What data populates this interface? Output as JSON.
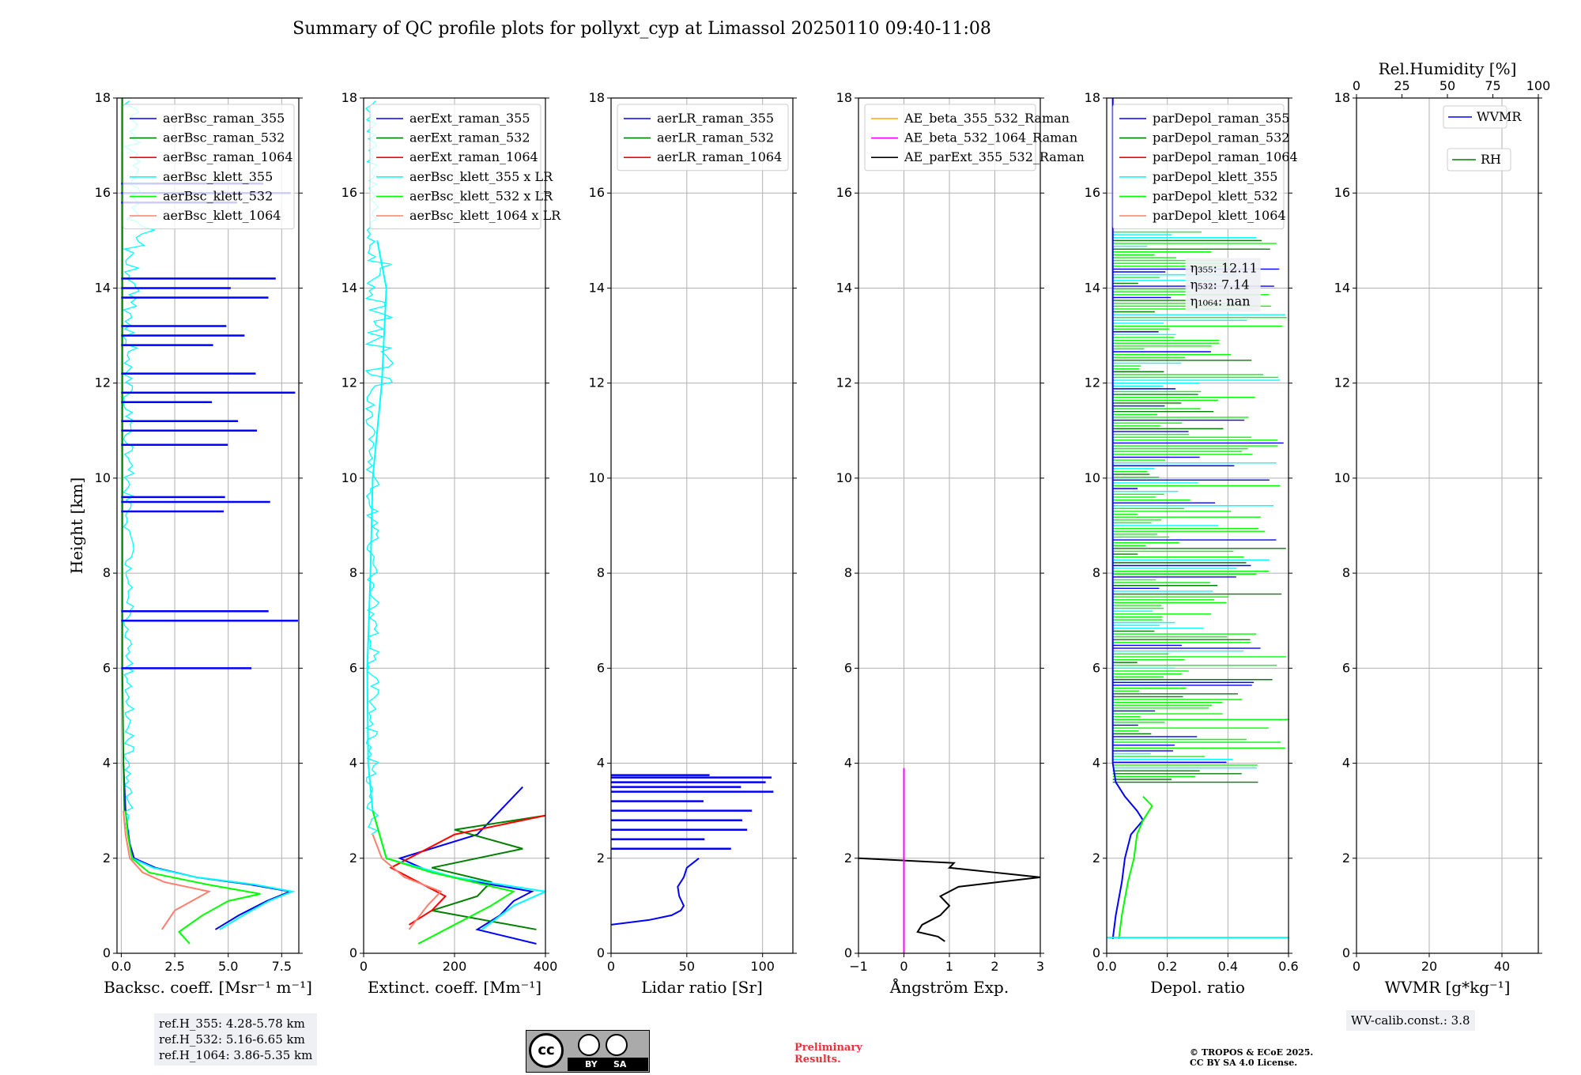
{
  "title": "Summary of QC profile plots for pollyxt_cyp at Limassol 20250110 09:40-11:08",
  "info": {
    "ref_h": [
      "ref.H_355: 4.28-5.78 km",
      "ref.H_532: 5.16-6.65 km",
      "ref.H_1064: 3.86-5.35 km"
    ],
    "wv_calib": "WV-calib.const.: 3.8",
    "prelim_line1": "Preliminary",
    "prelim_line2": "Results.",
    "copyright_line1": "© TROPOS & ECoE 2025.",
    "copyright_line2": "CC BY SA 4.0 License.",
    "license_badge": [
      "BY",
      "SA"
    ]
  },
  "colors": {
    "c355": "#0000ff",
    "c532": "#008000",
    "c1064": "#ff0000",
    "k355": "#00ffff",
    "k532": "#00ff00",
    "k1064": "#ff7f6e",
    "orange": "#ffa500",
    "magenta": "#ff00ff",
    "black": "#000000",
    "grid": "#b0b0b0"
  },
  "chart_data": [
    {
      "type": "line",
      "xlabel": "Backsc. coeff. [Msr⁻¹ m⁻¹]",
      "ylabel": "Height [km]",
      "xlim": [
        -0.2,
        8.3
      ],
      "ylim": [
        0,
        18
      ],
      "xticks": [
        0,
        2.5,
        5,
        7.5
      ],
      "xticklabels": [
        "0.0",
        "2.5",
        "5.0",
        "7.5"
      ],
      "yticks": [
        0,
        2,
        4,
        6,
        8,
        10,
        12,
        14,
        16,
        18
      ],
      "legend": [
        "aerBsc_raman_355",
        "aerBsc_raman_532",
        "aerBsc_raman_1064",
        "aerBsc_klett_355",
        "aerBsc_klett_532",
        "aerBsc_klett_1064"
      ],
      "series": [
        {
          "name": "aerBsc_raman_355",
          "color": "c355",
          "y": [
            0.5,
            0.8,
            1.1,
            1.3,
            1.45,
            1.6,
            1.8,
            2.0,
            2.3,
            2.6,
            3.0,
            3.5,
            4.0
          ],
          "x": [
            4.4,
            5.5,
            6.8,
            7.9,
            6.0,
            3.5,
            1.6,
            0.6,
            0.4,
            0.3,
            0.2,
            0.15,
            0.1
          ]
        },
        {
          "name": "aerBsc_klett_355",
          "color": "k355",
          "y": [
            0.5,
            0.8,
            1.1,
            1.3,
            1.45,
            1.6,
            1.8,
            2.0
          ],
          "x": [
            4.6,
            5.7,
            6.9,
            8.0,
            6.2,
            3.5,
            1.5,
            0.5
          ]
        },
        {
          "name": "aerBsc_klett_532",
          "color": "k532",
          "y": [
            0.2,
            0.45,
            0.8,
            1.1,
            1.25,
            1.45,
            1.7,
            2.0,
            2.5,
            3.0
          ],
          "x": [
            3.2,
            2.7,
            3.8,
            5.0,
            6.5,
            4.0,
            1.3,
            0.5,
            0.3,
            0.2
          ]
        },
        {
          "name": "aerBsc_klett_1064",
          "color": "k1064",
          "y": [
            0.5,
            0.9,
            1.15,
            1.3,
            1.5,
            1.7,
            2.0,
            2.5,
            3.0
          ],
          "x": [
            1.9,
            2.5,
            3.5,
            4.1,
            2.0,
            1.0,
            0.4,
            0.2,
            0.1
          ]
        },
        {
          "name": "aerBsc_raman_532",
          "color": "c532",
          "y": [
            3.0,
            4.0,
            6.0,
            8.0,
            10.0,
            12.0,
            14.0,
            18.0
          ],
          "x": [
            0.15,
            0.1,
            0.05,
            0.05,
            0.05,
            0.05,
            0.05,
            0.05
          ]
        }
      ],
      "spikes_355_km": [
        6.0,
        7.0,
        7.2,
        9.3,
        9.5,
        9.6,
        10.7,
        11.0,
        11.2,
        11.6,
        11.8,
        12.2,
        12.8,
        13.0,
        13.2,
        13.8,
        14.0,
        14.2,
        15.8,
        16.0,
        16.2
      ]
    },
    {
      "type": "line",
      "xlabel": "Extinct. coeff. [Mm⁻¹]",
      "xlim": [
        0,
        400
      ],
      "ylim": [
        0,
        18
      ],
      "xticks": [
        0,
        200,
        400
      ],
      "xticklabels": [
        "0",
        "200",
        "400"
      ],
      "yticks": [
        0,
        2,
        4,
        6,
        8,
        10,
        12,
        14,
        16,
        18
      ],
      "legend": [
        "aerExt_raman_355",
        "aerExt_raman_532",
        "aerExt_raman_1064",
        "aerBsc_klett_355 x LR",
        "aerBsc_klett_532 x LR",
        "aerBsc_klett_1064 x LR"
      ],
      "series": [
        {
          "name": "aerExt_raman_355",
          "color": "c355",
          "y": [
            0.2,
            0.5,
            0.8,
            1.1,
            1.3,
            1.5,
            1.7,
            2.0,
            2.5,
            3.0,
            3.5
          ],
          "x": [
            380,
            250,
            300,
            330,
            370,
            250,
            150,
            80,
            250,
            300,
            350
          ]
        },
        {
          "name": "aerExt_raman_532",
          "color": "c532",
          "y": [
            0.5,
            0.9,
            1.2,
            1.5,
            1.8,
            2.2,
            2.6,
            2.9
          ],
          "x": [
            380,
            150,
            250,
            280,
            150,
            350,
            200,
            400
          ]
        },
        {
          "name": "aerExt_raman_1064",
          "color": "c1064",
          "y": [
            0.6,
            0.9,
            1.2,
            1.5,
            1.8,
            2.0,
            2.5,
            2.9
          ],
          "x": [
            100,
            150,
            180,
            120,
            60,
            100,
            200,
            400
          ]
        },
        {
          "name": "aerBsc_klett_355 x LR",
          "color": "k355",
          "y": [
            0.5,
            1.0,
            1.3,
            1.6,
            2.0,
            3.0,
            4.0,
            6.0,
            8.0,
            10.0,
            12.0,
            14.0,
            15.0
          ],
          "x": [
            260,
            330,
            400,
            200,
            50,
            20,
            10,
            8,
            15,
            20,
            40,
            50,
            30
          ]
        },
        {
          "name": "aerBsc_klett_532 x LR",
          "color": "k532",
          "y": [
            0.2,
            0.6,
            1.0,
            1.3,
            1.7,
            2.0,
            3.0
          ],
          "x": [
            120,
            200,
            280,
            330,
            150,
            50,
            20
          ]
        },
        {
          "name": "aerBsc_klett_1064 x LR",
          "color": "k1064",
          "y": [
            0.5,
            1.0,
            1.3,
            1.6,
            2.0,
            2.5
          ],
          "x": [
            100,
            140,
            170,
            90,
            40,
            20
          ]
        }
      ]
    },
    {
      "type": "line",
      "xlabel": "Lidar ratio [Sr]",
      "xlim": [
        0,
        120
      ],
      "ylim": [
        0,
        18
      ],
      "xticks": [
        0,
        50,
        100
      ],
      "xticklabels": [
        "0",
        "50",
        "100"
      ],
      "yticks": [
        0,
        2,
        4,
        6,
        8,
        10,
        12,
        14,
        16,
        18
      ],
      "legend": [
        "aerLR_raman_355",
        "aerLR_raman_532",
        "aerLR_raman_1064"
      ],
      "series": [
        {
          "name": "aerLR_raman_355",
          "color": "c355",
          "y": [
            0.6,
            0.7,
            0.8,
            0.9,
            1.0,
            1.2,
            1.4,
            1.6,
            1.8,
            2.0
          ],
          "x": [
            0,
            25,
            40,
            46,
            48,
            45,
            44,
            48,
            50,
            58
          ]
        }
      ],
      "spikes_355_km": [
        2.2,
        2.4,
        2.6,
        2.8,
        3.0,
        3.2,
        3.4,
        3.5,
        3.6,
        3.7,
        3.75
      ]
    },
    {
      "type": "line",
      "xlabel": "Ångström Exp.",
      "xlim": [
        -1,
        3
      ],
      "ylim": [
        0,
        18
      ],
      "xticks": [
        -1,
        0,
        1,
        2,
        3
      ],
      "xticklabels": [
        "−1",
        "0",
        "1",
        "2",
        "3"
      ],
      "yticks": [
        0,
        2,
        4,
        6,
        8,
        10,
        12,
        14,
        16,
        18
      ],
      "legend": [
        "AE_beta_355_532_Raman",
        "AE_beta_532_1064_Raman",
        "AE_parExt_355_532_Raman"
      ],
      "series": [
        {
          "name": "AE_parExt_355_532_Raman",
          "color": "black",
          "y": [
            0.25,
            0.35,
            0.45,
            0.6,
            0.8,
            1.0,
            1.2,
            1.4,
            1.6,
            1.7,
            1.8,
            1.9,
            2.0
          ],
          "x": [
            0.9,
            0.75,
            0.3,
            0.4,
            0.8,
            1.0,
            0.8,
            1.2,
            3.0,
            2.0,
            1.0,
            1.1,
            -1.0
          ]
        },
        {
          "name": "AE_beta_532_1064_Raman",
          "color": "magenta",
          "y": [
            0,
            3.9
          ],
          "x": [
            0,
            0
          ]
        }
      ]
    },
    {
      "type": "line",
      "xlabel": "Depol. ratio",
      "xlim": [
        0,
        0.6
      ],
      "ylim": [
        0,
        18
      ],
      "xticks": [
        0,
        0.2,
        0.4,
        0.6
      ],
      "xticklabels": [
        "0.0",
        "0.2",
        "0.4",
        "0.6"
      ],
      "yticks": [
        0,
        2,
        4,
        6,
        8,
        10,
        12,
        14,
        16,
        18
      ],
      "legend": [
        "parDepol_raman_355",
        "parDepol_raman_532",
        "parDepol_raman_1064",
        "parDepol_klett_355",
        "parDepol_klett_532",
        "parDepol_klett_1064"
      ],
      "annotations": [
        "η₃₅₅: 12.11",
        "η₅₃₂: 7.14",
        "η₁₀₆₄: nan"
      ],
      "series": [
        {
          "name": "parDepol_raman_355",
          "color": "c355",
          "y": [
            0.3,
            0.8,
            1.5,
            2.0,
            2.5,
            2.8,
            3.0,
            3.3,
            3.6,
            4.0,
            18.0
          ],
          "x": [
            0.02,
            0.03,
            0.05,
            0.06,
            0.08,
            0.12,
            0.1,
            0.06,
            0.03,
            0.02,
            0.02
          ]
        },
        {
          "name": "parDepol_klett_532",
          "color": "k532",
          "y": [
            0.3,
            0.8,
            1.5,
            2.0,
            2.5,
            2.8,
            3.1,
            3.3
          ],
          "x": [
            0.04,
            0.05,
            0.07,
            0.09,
            0.1,
            0.12,
            0.15,
            0.12
          ]
        },
        {
          "name": "parDepol_klett_355",
          "color": "k355",
          "y": [
            0.33,
            0.33
          ],
          "x": [
            0.0,
            0.6
          ]
        }
      ],
      "noise_upper_km": [
        3.6,
        15.2
      ]
    },
    {
      "type": "line",
      "xlabel": "WVMR [g*kg⁻¹]",
      "xlabel_top": "Rel.Humidity [%]",
      "xlim": [
        0,
        50
      ],
      "ylim": [
        0,
        18
      ],
      "xticks": [
        0,
        20,
        40
      ],
      "xticklabels": [
        "0",
        "20",
        "40"
      ],
      "xticks_top": [
        0,
        25,
        50,
        75,
        100
      ],
      "xticklabels_top": [
        "0",
        "25",
        "50",
        "75",
        "100"
      ],
      "yticks": [
        0,
        2,
        4,
        6,
        8,
        10,
        12,
        14,
        16,
        18
      ],
      "legend": [
        "WVMR",
        "RH"
      ],
      "series": []
    }
  ]
}
